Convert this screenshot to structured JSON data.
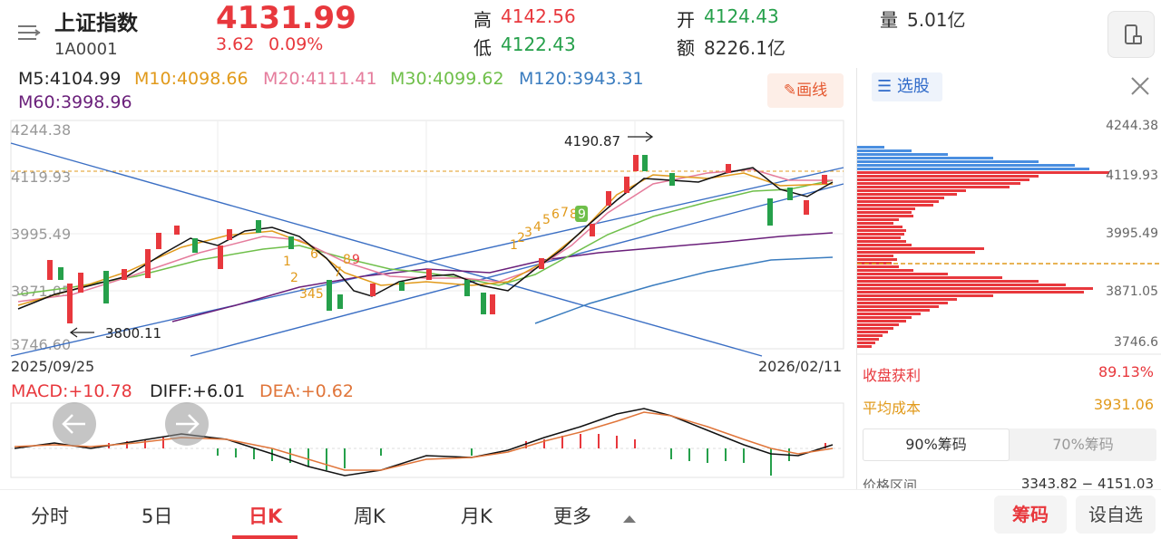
{
  "header": {
    "name": "上证指数",
    "code": "1A0001",
    "price": "4131.99",
    "change": "3.62",
    "change_pct": "0.09%",
    "high_label": "高",
    "high": "4142.56",
    "low_label": "低",
    "low": "4122.43",
    "open_label": "开",
    "open": "4124.43",
    "amount_label": "额",
    "amount": "8226.1亿",
    "volume_label": "量",
    "volume": "5.01亿"
  },
  "ma_legend": {
    "m5": "M5:4104.99",
    "m10": "M10:4098.66",
    "m20": "M20:4111.41",
    "m30": "M30:4099.62",
    "m120": "M120:3943.31",
    "m60": "M60:3998.96"
  },
  "draw_button": "画线",
  "y_axis": [
    "4244.38",
    "4119.93",
    "3995.49",
    "3871.05",
    "3746.60"
  ],
  "x_axis": {
    "start": "2025/09/25",
    "end": "2026/02/11"
  },
  "annotations": {
    "high_mark": "4190.87",
    "low_mark": "3800.11"
  },
  "td_seq": [
    "1",
    "2",
    "3",
    "4",
    "5",
    "6",
    "7",
    "8",
    "9"
  ],
  "td_seq_a": [
    "1",
    "2",
    "345",
    "6",
    "7",
    "8",
    "9"
  ],
  "macd": {
    "macd": "MACD:+10.78",
    "diff": "DIFF:+6.01",
    "dea": "DEA:+0.62"
  },
  "side": {
    "select_stock": "选股",
    "price_labels": [
      "4244.38",
      "4119.93",
      "3995.49",
      "3871.05",
      "3746.6"
    ],
    "profit_label": "收盘获利",
    "profit_value": "89.13%",
    "avg_cost_label": "平均成本",
    "avg_cost_value": "3931.06",
    "tab90": "90%筹码",
    "tab70": "70%筹码",
    "range_label": "价格区间",
    "range_value": "3343.82 − 4151.03"
  },
  "nav": {
    "tabs": [
      "分时",
      "5日",
      "日K",
      "周K",
      "月K",
      "更多"
    ],
    "active_index": 2,
    "chips": "筹码",
    "add_watch": "设自选"
  },
  "colors": {
    "up": "#e8383d",
    "down": "#26a04b",
    "accent": "#e8383d"
  }
}
